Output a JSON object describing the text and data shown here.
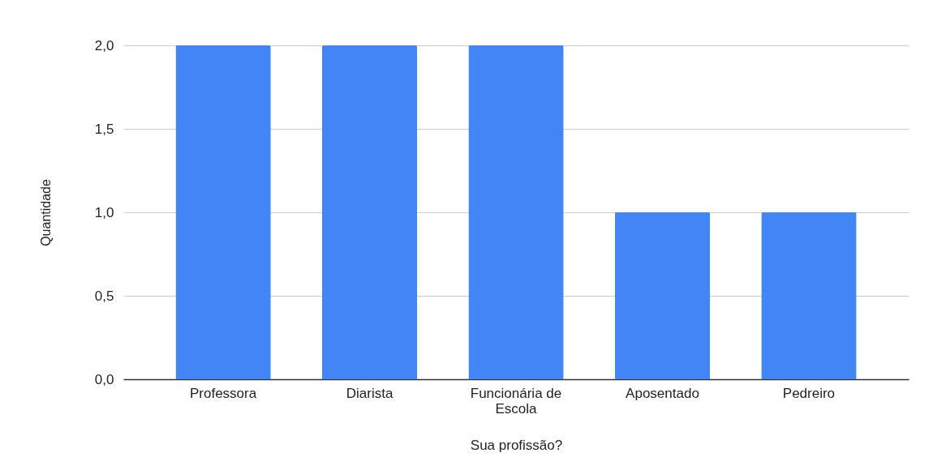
{
  "chart_data": {
    "type": "bar",
    "xlabel": "Sua profissão?",
    "ylabel": "Quantidade",
    "categories": [
      "Professora",
      "Diarista",
      "Funcionária de Escola",
      "Aposentado",
      "Pedreiro"
    ],
    "values": [
      2,
      2,
      2,
      1,
      1
    ],
    "color": "#4285f4",
    "ylim": [
      0,
      2
    ],
    "yticks": [
      {
        "value": 0,
        "label": "0,0"
      },
      {
        "value": 0.5,
        "label": "0,5"
      },
      {
        "value": 1,
        "label": "1,0"
      },
      {
        "value": 1.5,
        "label": "1,5"
      },
      {
        "value": 2,
        "label": "2,0"
      }
    ],
    "grid": "y"
  }
}
